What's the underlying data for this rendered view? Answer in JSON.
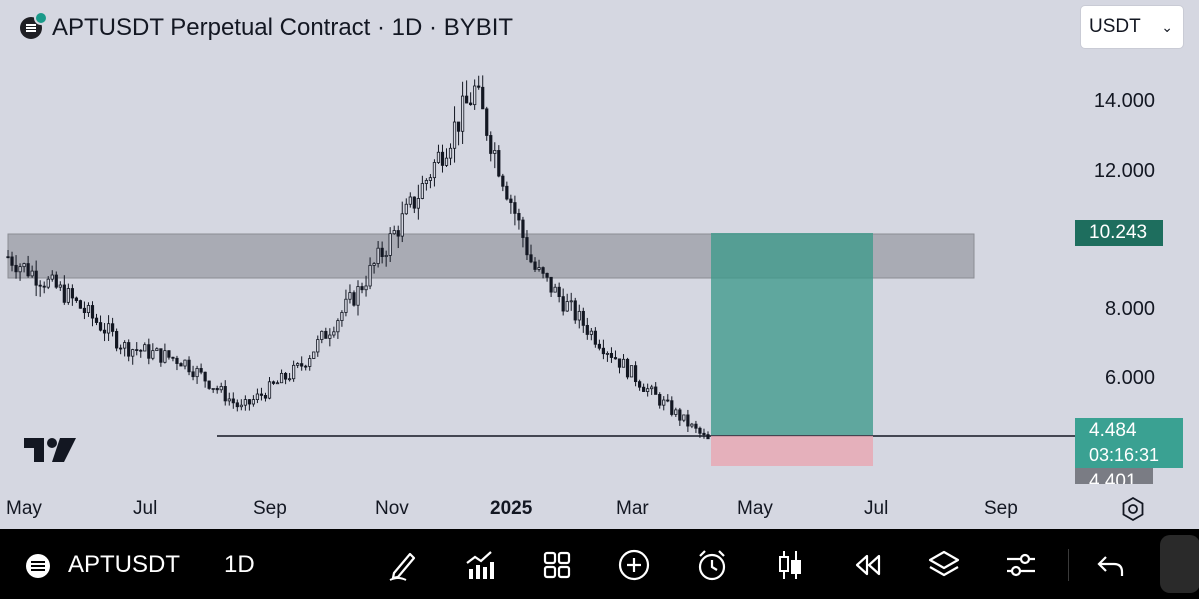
{
  "header": {
    "title": "APTUSDT Perpetual Contract · 1D · BYBIT",
    "currency": "USDT"
  },
  "price_axis": {
    "ticks": [
      "14.000",
      "12.000",
      "8.000",
      "6.000"
    ],
    "target_price": "10.243",
    "current_price": "4.484",
    "countdown": "03:16:31",
    "stop_price": "4.401"
  },
  "time_axis": {
    "labels": [
      "May",
      "Jul",
      "Sep",
      "Nov",
      "2025",
      "Mar",
      "May",
      "Jul",
      "Sep"
    ]
  },
  "chart_data": {
    "type": "candlestick",
    "symbol": "APTUSDT",
    "interval": "1D",
    "approx_path": {
      "dates": [
        "Apr",
        "May",
        "Jun",
        "Jul",
        "Aug",
        "Sep",
        "Oct",
        "Nov",
        "Dec",
        "2025",
        "Feb",
        "Mar",
        "Apr"
      ],
      "close": [
        9.8,
        8.7,
        7.2,
        6.8,
        5.4,
        6.6,
        8.8,
        11.5,
        14.6,
        9.5,
        7.6,
        5.9,
        4.48
      ]
    },
    "resistance_zone": [
      9.0,
      10.2
    ],
    "support_level": 4.48,
    "long_position": {
      "entry": 4.484,
      "target": 10.243,
      "stop": 4.401
    },
    "colors": {
      "profit_zone": "#3d9a8a",
      "loss_zone": "#e8a9b4",
      "resistance_zone": "#9a9ca4",
      "background": "#d5d7e1"
    }
  },
  "toolbar": {
    "symbol": "APTUSDT",
    "interval": "1D",
    "icons": [
      "pen-icon",
      "indicators-icon",
      "grid-icon",
      "add-icon",
      "alert-icon",
      "candles-icon",
      "replay-icon",
      "layers-icon",
      "settings-sliders-icon",
      "undo-icon"
    ]
  }
}
